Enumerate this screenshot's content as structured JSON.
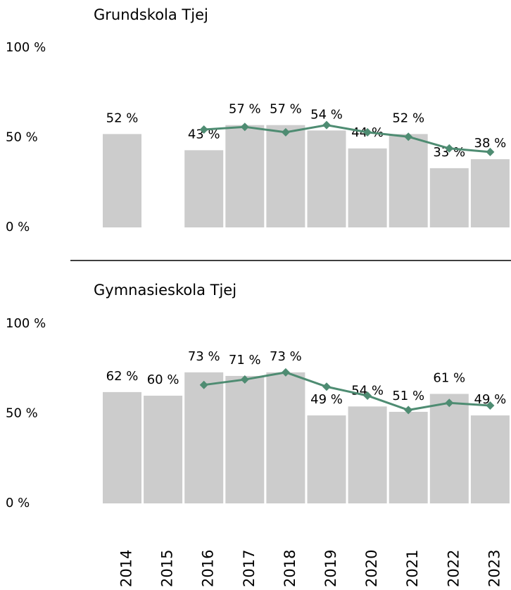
{
  "chart_data": [
    {
      "type": "bar",
      "title": "Grundskola Tjej",
      "ylim": [
        0,
        100
      ],
      "yticks": [
        {
          "value": 0,
          "label": "0 %"
        },
        {
          "value": 50,
          "label": "50 %"
        },
        {
          "value": 100,
          "label": "100 %"
        }
      ],
      "bars": {
        "color": "#cccccc",
        "values": [
          52,
          null,
          43,
          57,
          57,
          54,
          44,
          52,
          33,
          38
        ],
        "value_labels": [
          "52 %",
          null,
          "43 %",
          "57 %",
          "57 %",
          "54 %",
          "44 %",
          "52 %",
          "33 %",
          "38 %"
        ]
      },
      "line": {
        "color": "#4e8c72",
        "values": [
          null,
          null,
          54.5,
          56,
          53,
          57,
          53,
          50.5,
          44,
          42
        ]
      }
    },
    {
      "type": "bar",
      "title": "Gymnasieskola Tjej",
      "categories": [
        "2014",
        "2015",
        "2016",
        "2017",
        "2018",
        "2019",
        "2020",
        "2021",
        "2022",
        "2023"
      ],
      "ylim": [
        0,
        100
      ],
      "yticks": [
        {
          "value": 0,
          "label": "0 %"
        },
        {
          "value": 50,
          "label": "50 %"
        },
        {
          "value": 100,
          "label": "100 %"
        }
      ],
      "bars": {
        "color": "#cccccc",
        "values": [
          62,
          60,
          73,
          71,
          73,
          49,
          54,
          51,
          61,
          49
        ],
        "value_labels": [
          "62 %",
          "60 %",
          "73 %",
          "71 %",
          "73 %",
          "49 %",
          "54 %",
          "51 %",
          "61 %",
          "49 %"
        ]
      },
      "line": {
        "color": "#4e8c72",
        "values": [
          null,
          null,
          66,
          69,
          73,
          65,
          60,
          52,
          56,
          54.5
        ]
      }
    }
  ]
}
